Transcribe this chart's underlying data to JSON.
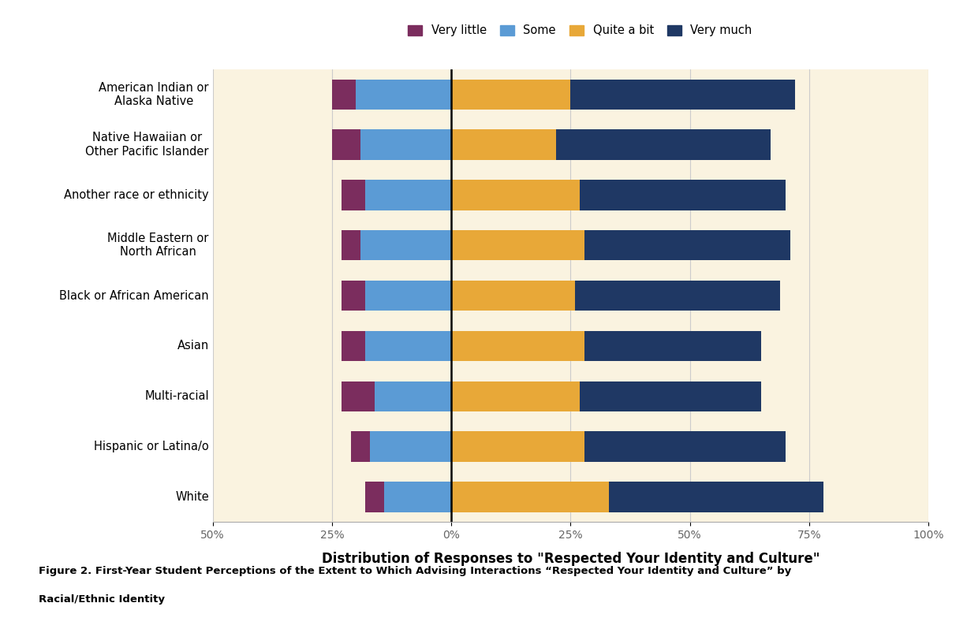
{
  "categories": [
    "White",
    "Hispanic or Latina/o",
    "Multi-racial",
    "Asian",
    "Black or African American",
    "Middle Eastern or\nNorth African",
    "Another race or ethnicity",
    "Native Hawaiian or\nOther Pacific Islander",
    "American Indian or\nAlaska Native"
  ],
  "very_little": [
    4,
    4,
    7,
    5,
    5,
    4,
    5,
    6,
    5
  ],
  "some": [
    14,
    17,
    16,
    18,
    18,
    19,
    18,
    19,
    20
  ],
  "quite_a_bit": [
    33,
    28,
    27,
    28,
    26,
    28,
    27,
    22,
    25
  ],
  "very_much": [
    45,
    42,
    38,
    37,
    43,
    43,
    43,
    45,
    47
  ],
  "colors": {
    "very_little": "#7B2D5E",
    "some": "#5B9BD5",
    "quite_a_bit": "#E8A838",
    "very_much": "#1F3864"
  },
  "xlabel": "Distribution of Responses to \"Respected Your Identity and Culture\"",
  "xlim_left": -50,
  "xlim_right": 100,
  "background_color": "#FAF3E0",
  "caption_line1": "Figure 2. First-Year Student Perceptions of the Extent to Which Advising Interactions “Respected Your Identity and Culture” by",
  "caption_line2": "Racial/Ethnic Identity"
}
